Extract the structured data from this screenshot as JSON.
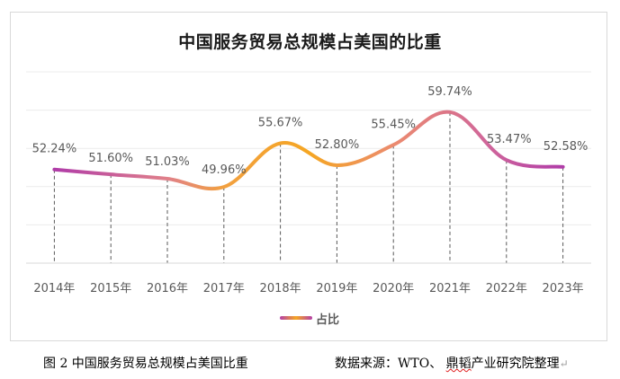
{
  "chart_data": {
    "type": "line",
    "title": "中国服务贸易总规模占美国的比重",
    "categories": [
      "2014年",
      "2015年",
      "2016年",
      "2017年",
      "2018年",
      "2019年",
      "2020年",
      "2021年",
      "2022年",
      "2023年"
    ],
    "series": [
      {
        "name": "占比",
        "values": [
          52.24,
          51.6,
          51.03,
          49.96,
          55.67,
          52.8,
          55.45,
          59.74,
          53.47,
          52.58
        ],
        "labels": [
          "52.24%",
          "51.60%",
          "51.03%",
          "49.96%",
          "55.67%",
          "52.80%",
          "55.45%",
          "59.74%",
          "53.47%",
          "52.58%"
        ]
      }
    ],
    "xlabel": "",
    "ylabel": "",
    "ylim": [
      40,
      65
    ],
    "grid": true,
    "smooth": true,
    "drop_lines": true,
    "legend": "bottom-center",
    "colors": {
      "end": "#b43fa8",
      "mid_pink": "#e0808a",
      "peak": "#f5a623"
    }
  },
  "caption": {
    "figure": "图 2 中国服务贸易总规模占美国比重",
    "source_prefix": "数据来源：WTO、 ",
    "source_flagged": "鼎韬",
    "source_suffix": "产业研究院整理",
    "return_mark": "↵"
  }
}
